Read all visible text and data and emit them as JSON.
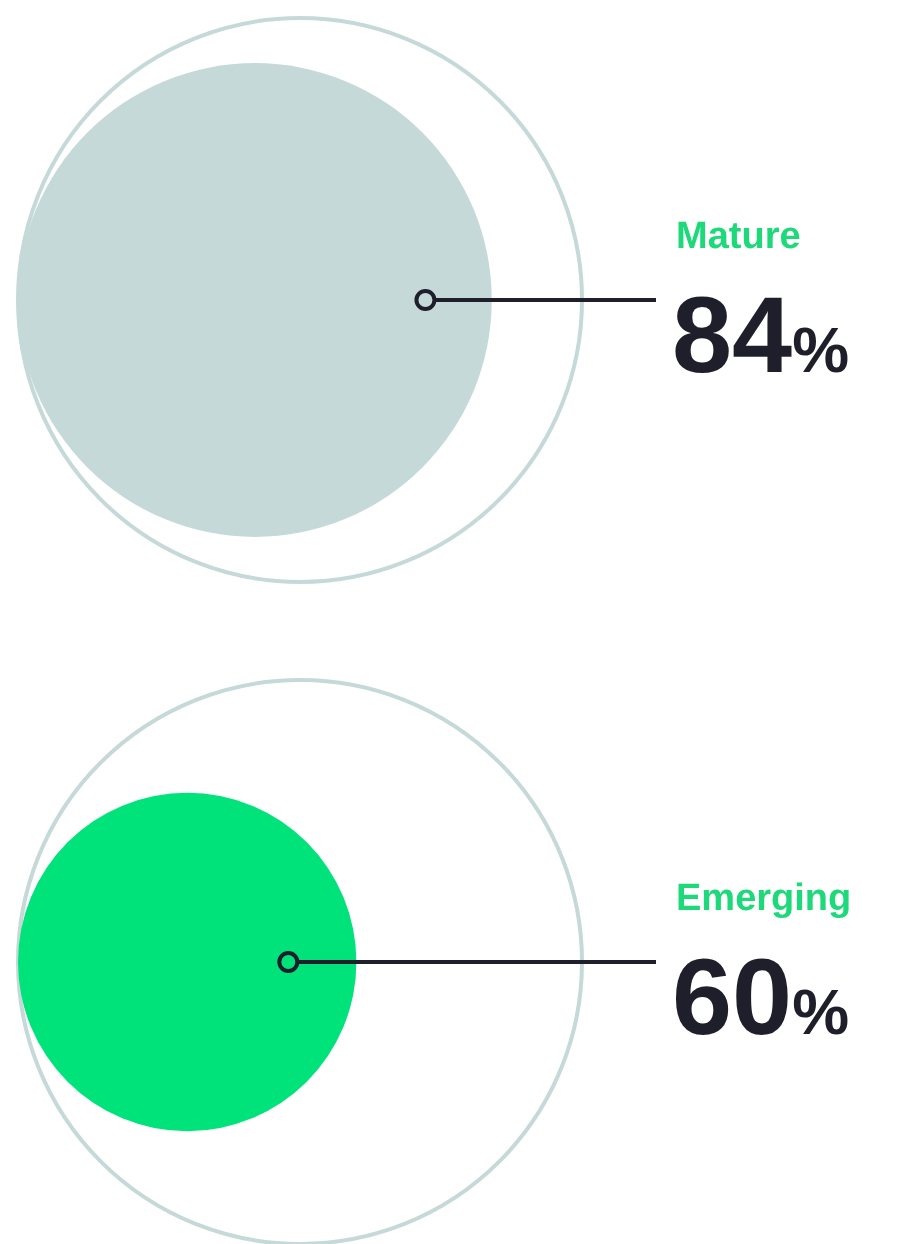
{
  "chart_data": {
    "type": "other",
    "categories": [
      "Mature",
      "Emerging"
    ],
    "values": [
      84,
      60
    ],
    "value_labels": [
      "84%",
      "60%"
    ],
    "colors": [
      "#c5d9d8",
      "#00e27a"
    ]
  }
}
